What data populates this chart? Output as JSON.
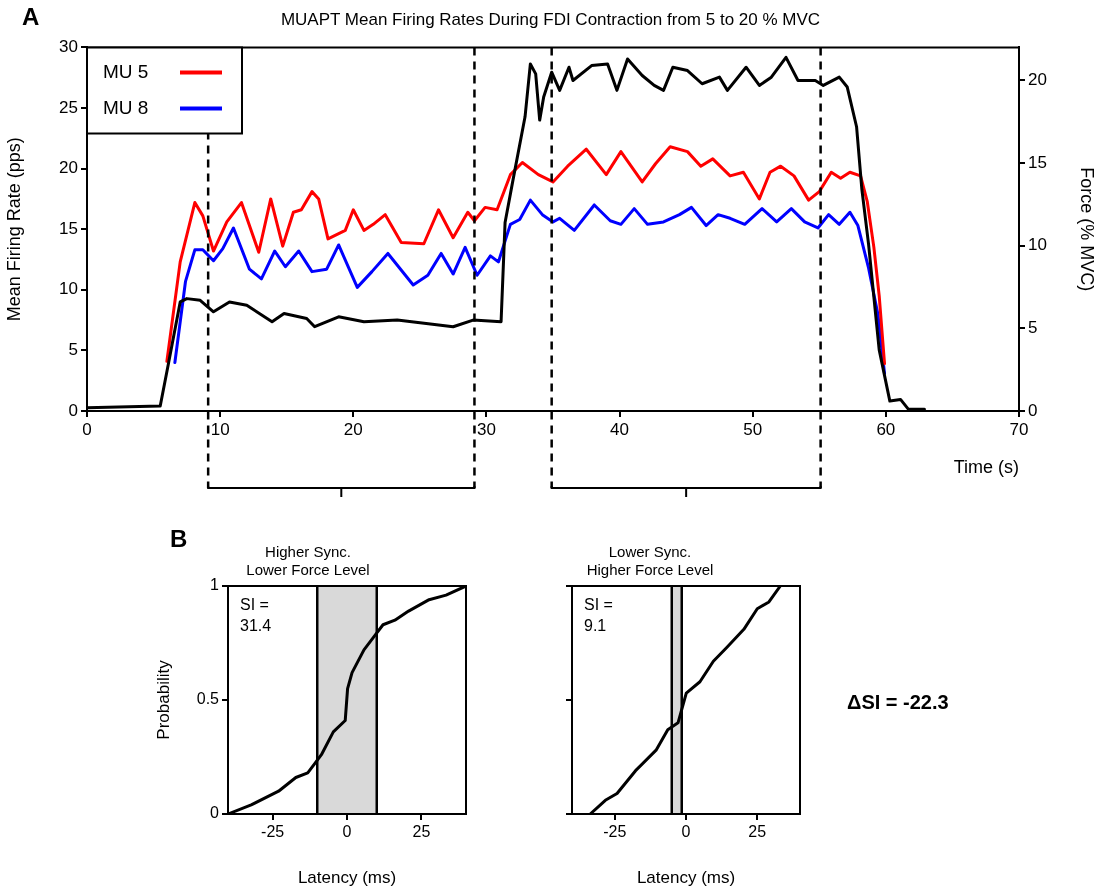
{
  "chart_data": [
    {
      "type": "line",
      "title": "MUAPT Mean Firing Rates During FDI Contraction from 5 to 20 % MVC",
      "xlabel": "Time (s)",
      "ylabel": "Mean Firing Rate (pps)",
      "y2label": "Force (% MVC)",
      "xlim": [
        0,
        70
      ],
      "xticks": [
        0,
        10,
        20,
        30,
        40,
        50,
        60,
        70
      ],
      "ylim": [
        0,
        30
      ],
      "yticks": [
        0,
        5,
        10,
        15,
        20,
        25,
        30
      ],
      "y2lim": [
        0,
        22
      ],
      "y2ticks": [
        0,
        5,
        10,
        15,
        20
      ],
      "legend": "top left",
      "annotations": [
        "A"
      ],
      "ref_lines": [
        {
          "axis": "x",
          "value": 9.1,
          "color": "#000000",
          "line_style": "dashed"
        },
        {
          "axis": "x",
          "value": 29.1,
          "color": "#000000",
          "line_style": "dashed"
        },
        {
          "axis": "x",
          "value": 34.9,
          "color": "#000000",
          "line_style": "dashed"
        },
        {
          "axis": "x",
          "value": 55.1,
          "color": "#000000",
          "line_style": "dashed"
        }
      ],
      "series": [
        {
          "color": "#000000",
          "axis": "y2",
          "x": [
            0,
            5.5,
            6.1,
            7.0,
            7.5,
            8.5,
            9.5,
            10.7,
            12.0,
            13.9,
            14.8,
            16.5,
            17.1,
            18.9,
            20.8,
            23.3,
            27.5,
            29.0,
            31.1,
            31.4,
            32.0,
            32.9,
            33.3,
            33.7,
            34.0,
            34.3,
            34.9,
            35.5,
            36.2,
            36.5,
            37.9,
            39.1,
            39.8,
            40.6,
            41.7,
            42.6,
            43.3,
            44.0,
            45.1,
            46.2,
            47.5,
            48.1,
            49.5,
            50.5,
            51.4,
            52.5,
            53.4,
            54.7,
            55.3,
            56.5,
            57.1,
            57.8,
            58.2,
            58.7,
            59.5,
            60.3,
            61.1,
            61.7,
            62.9
          ],
          "values": [
            0.2,
            0.3,
            2.8,
            6.6,
            6.8,
            6.7,
            6.0,
            6.6,
            6.4,
            5.4,
            5.9,
            5.6,
            5.1,
            5.7,
            5.4,
            5.5,
            5.1,
            5.5,
            5.4,
            11.4,
            14.0,
            17.8,
            21.0,
            20.4,
            17.6,
            19.0,
            20.5,
            19.4,
            20.8,
            20.0,
            20.9,
            21.0,
            19.4,
            21.3,
            20.3,
            19.7,
            19.4,
            20.8,
            20.6,
            19.8,
            20.2,
            19.4,
            20.8,
            19.7,
            20.2,
            21.4,
            20.0,
            20.0,
            19.7,
            20.2,
            19.6,
            17.2,
            13.4,
            10.1,
            3.7,
            0.6,
            0.7,
            0.1,
            0.1
          ]
        },
        {
          "name": "MU 5",
          "color": "#ff0000",
          "x": [
            6.0,
            7.0,
            8.1,
            8.7,
            9.5,
            10.5,
            11.6,
            12.9,
            13.8,
            14.7,
            15.5,
            16.1,
            16.9,
            17.4,
            18.1,
            19.4,
            20.0,
            20.8,
            21.5,
            22.4,
            23.6,
            25.3,
            26.4,
            27.5,
            28.6,
            29.1,
            29.9,
            30.8,
            31.8,
            32.7,
            33.9,
            35.0,
            36.1,
            37.5,
            39.0,
            40.1,
            41.7,
            42.7,
            43.8,
            45.1,
            46.1,
            47.0,
            48.3,
            49.3,
            50.5,
            51.3,
            52.1,
            53.1,
            54.2,
            55.0,
            55.9,
            56.6,
            57.3,
            58.1,
            58.6,
            59.1,
            59.5,
            59.9
          ],
          "values": [
            4.1,
            12.3,
            17.2,
            16.1,
            13.2,
            15.6,
            17.2,
            13.1,
            17.5,
            13.6,
            16.4,
            16.6,
            18.1,
            17.5,
            14.2,
            14.9,
            16.6,
            14.9,
            15.4,
            16.2,
            13.9,
            13.8,
            16.6,
            14.3,
            16.4,
            15.7,
            16.8,
            16.6,
            19.5,
            20.5,
            19.5,
            18.9,
            20.2,
            21.6,
            19.5,
            21.4,
            18.9,
            20.4,
            21.8,
            21.4,
            20.2,
            20.8,
            19.4,
            19.7,
            17.5,
            19.7,
            20.2,
            19.4,
            17.4,
            18.1,
            19.7,
            19.2,
            19.7,
            19.4,
            17.3,
            13.5,
            9.5,
            3.9
          ]
        },
        {
          "name": "MU 8",
          "color": "#0000ff",
          "x": [
            6.6,
            7.4,
            8.1,
            8.7,
            9.5,
            10.2,
            11.0,
            12.2,
            13.1,
            14.1,
            14.9,
            15.9,
            16.9,
            18.0,
            18.9,
            20.3,
            21.4,
            22.6,
            24.5,
            25.6,
            26.6,
            27.5,
            28.4,
            29.3,
            30.3,
            30.9,
            31.8,
            32.5,
            33.3,
            34.2,
            35.0,
            35.5,
            36.6,
            38.1,
            39.3,
            40.1,
            41.1,
            42.1,
            43.3,
            44.5,
            45.4,
            46.5,
            47.4,
            48.3,
            49.4,
            50.7,
            51.8,
            52.9,
            53.9,
            54.9,
            55.7,
            56.5,
            57.3,
            57.9,
            58.7,
            59.4,
            59.9
          ],
          "values": [
            4.0,
            10.7,
            13.3,
            13.3,
            12.4,
            13.4,
            15.1,
            11.7,
            10.9,
            13.2,
            11.9,
            13.2,
            11.5,
            11.7,
            13.7,
            10.2,
            11.5,
            13.0,
            10.4,
            11.2,
            13.0,
            11.3,
            13.5,
            11.2,
            12.8,
            12.3,
            15.4,
            15.8,
            17.4,
            16.2,
            15.6,
            15.9,
            14.9,
            17.0,
            15.7,
            15.4,
            16.7,
            15.4,
            15.6,
            16.2,
            16.8,
            15.3,
            16.2,
            15.9,
            15.4,
            16.7,
            15.6,
            16.7,
            15.6,
            15.1,
            16.2,
            15.4,
            16.4,
            15.3,
            11.8,
            8.0,
            3.1
          ]
        }
      ]
    },
    {
      "type": "line",
      "title": "Higher Sync.\nLower Force Level",
      "xlabel": "Latency (ms)",
      "ylabel": "Probability",
      "xlim": [
        -40,
        40
      ],
      "xticks": [
        -25,
        0,
        25
      ],
      "ylim": [
        0,
        1
      ],
      "yticks": [
        0,
        0.5,
        1
      ],
      "annotations": [
        "B",
        "SI =\n31.4"
      ],
      "bands": [
        {
          "axis": "x",
          "from": -10,
          "to": 10,
          "color": "#d9d9d9"
        }
      ],
      "ref_lines": [
        {
          "axis": "x",
          "value": -10,
          "color": "#000000",
          "line_style": "solid"
        },
        {
          "axis": "x",
          "value": 10,
          "color": "#000000",
          "line_style": "solid"
        }
      ],
      "series": [
        {
          "color": "#000000",
          "x": [
            -40,
            -32.2,
            -23,
            -17.2,
            -13.2,
            -8.6,
            -4.6,
            -0.6,
            0.2,
            1.7,
            5.7,
            9.2,
            12.1,
            16.1,
            20.7,
            27.6,
            33.3,
            40
          ],
          "values": [
            0,
            0.04,
            0.1,
            0.16,
            0.18,
            0.26,
            0.36,
            0.41,
            0.55,
            0.62,
            0.72,
            0.78,
            0.83,
            0.85,
            0.89,
            0.94,
            0.96,
            1
          ]
        }
      ]
    },
    {
      "type": "line",
      "title": "Lower Sync.\nHigher Force Level",
      "xlabel": "Latency (ms)",
      "xlim": [
        -40,
        40
      ],
      "xticks": [
        -25,
        0,
        25
      ],
      "ylim": [
        0,
        1
      ],
      "yticks": [
        0,
        0.5,
        1
      ],
      "tick_labels": "x",
      "annotations": [
        "SI =\n9.1",
        "ΔSI = -22.3"
      ],
      "bands": [
        {
          "axis": "x",
          "from": -5,
          "to": -1.5,
          "color": "#d9d9d9"
        }
      ],
      "ref_lines": [
        {
          "axis": "x",
          "value": -5,
          "color": "#000000",
          "line_style": "solid"
        },
        {
          "axis": "x",
          "value": -1.5,
          "color": "#000000",
          "line_style": "solid"
        }
      ],
      "series": [
        {
          "color": "#000000",
          "x": [
            -33.6,
            -28.3,
            -24.2,
            -17.7,
            -10.5,
            -6.4,
            -2.8,
            0.1,
            4.9,
            9.6,
            14.3,
            20.3,
            25,
            29.1,
            33.1
          ],
          "values": [
            0,
            0.06,
            0.09,
            0.19,
            0.28,
            0.37,
            0.4,
            0.53,
            0.58,
            0.67,
            0.73,
            0.81,
            0.9,
            0.93,
            1
          ]
        }
      ]
    }
  ]
}
